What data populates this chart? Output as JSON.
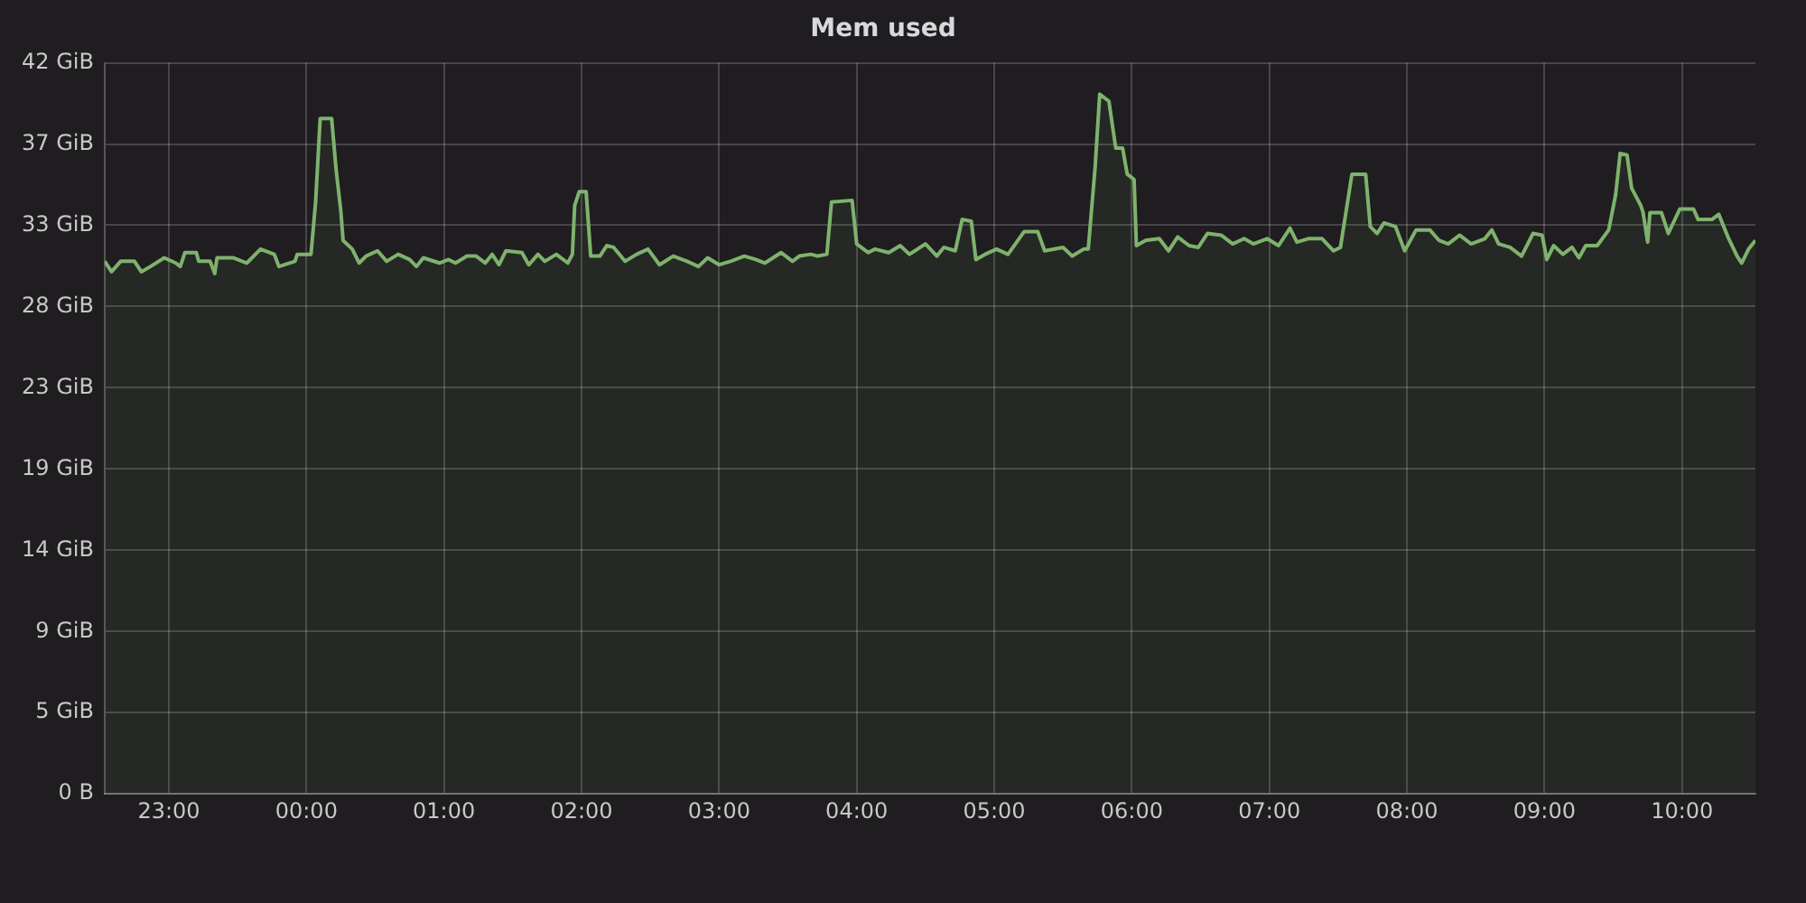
{
  "chart_data": {
    "type": "area",
    "title": "Mem used",
    "color": "#7eb26d",
    "grid": true,
    "x": [
      "--01-01T22:32",
      "--01-01T22:35",
      "--01-01T22:39",
      "--01-01T22:45",
      "--01-01T22:48",
      "--01-01T22:52",
      "--01-01T22:58",
      "--01-01T23:03",
      "--01-01T23:05",
      "--01-01T23:07",
      "--01-01T23:12",
      "--01-01T23:13",
      "--01-01T23:18",
      "--01-01T23:20",
      "--01-01T23:21",
      "--01-01T23:28",
      "--01-01T23:34",
      "--01-01T23:40",
      "--01-01T23:46",
      "--01-01T23:48",
      "--01-01T23:55",
      "--01-01T23:56",
      "--01-02T00:01",
      "--01-02T00:02",
      "--01-02T00:04",
      "--01-02T00:06",
      "--01-02T00:11",
      "--01-02T00:13",
      "--01-02T00:15",
      "--01-02T00:16",
      "--01-02T00:20",
      "--01-02T00:23",
      "--01-02T00:26",
      "--01-02T00:31",
      "--01-02T00:35",
      "--01-02T00:40",
      "--01-02T00:45",
      "--01-02T00:48",
      "--01-02T00:51",
      "--01-02T00:58",
      "--01-02T01:02",
      "--01-02T01:05",
      "--01-02T01:10",
      "--01-02T01:14",
      "--01-02T01:18",
      "--01-02T01:21",
      "--01-02T01:24",
      "--01-02T01:27",
      "--01-02T01:34",
      "--01-02T01:37",
      "--01-02T01:41",
      "--01-02T01:44",
      "--01-02T01:49",
      "--01-02T01:54",
      "--01-02T01:56",
      "--01-02T01:57",
      "--01-02T01:59",
      "--01-02T02:02",
      "--01-02T02:04",
      "--01-02T02:08",
      "--01-02T02:11",
      "--01-02T02:14",
      "--01-02T02:19",
      "--01-02T02:24",
      "--01-02T02:29",
      "--01-02T02:34",
      "--01-02T02:40",
      "--01-02T02:46",
      "--01-02T02:51",
      "--01-02T02:55",
      "--01-02T03:00",
      "--01-02T03:05",
      "--01-02T03:11",
      "--01-02T03:16",
      "--01-02T03:20",
      "--01-02T03:27",
      "--01-02T03:32",
      "--01-02T03:35",
      "--01-02T03:40",
      "--01-02T03:43",
      "--01-02T03:47",
      "--01-02T03:49",
      "--01-02T03:58",
      "--01-02T04:00",
      "--01-02T04:05",
      "--01-02T04:08",
      "--01-02T04:14",
      "--01-02T04:19",
      "--01-02T04:23",
      "--01-02T04:30",
      "--01-02T04:35",
      "--01-02T04:38",
      "--01-02T04:43",
      "--01-02T04:46",
      "--01-02T04:50",
      "--01-02T04:52",
      "--01-02T04:56",
      "--01-02T05:01",
      "--01-02T05:06",
      "--01-02T05:13",
      "--01-02T05:19",
      "--01-02T05:22",
      "--01-02T05:30",
      "--01-02T05:34",
      "--01-02T05:39",
      "--01-02T05:41",
      "--01-02T05:44",
      "--01-02T05:46",
      "--01-02T05:50",
      "--01-02T05:53",
      "--01-02T05:56",
      "--01-02T05:58",
      "--01-02T06:01",
      "--01-02T06:02",
      "--01-02T06:06",
      "--01-02T06:12",
      "--01-02T06:16",
      "--01-02T06:20",
      "--01-02T06:25",
      "--01-02T06:29",
      "--01-02T06:33",
      "--01-02T06:39",
      "--01-02T06:44",
      "--01-02T06:49",
      "--01-02T06:53",
      "--01-02T06:59",
      "--01-02T07:04",
      "--01-02T07:09",
      "--01-02T07:12",
      "--01-02T07:17",
      "--01-02T07:23",
      "--01-02T07:28",
      "--01-02T07:31",
      "--01-02T07:36",
      "--01-02T07:42",
      "--01-02T07:44",
      "--01-02T07:47",
      "--01-02T07:50",
      "--01-02T07:55",
      "--01-02T07:59",
      "--01-02T08:04",
      "--01-02T08:10",
      "--01-02T08:14",
      "--01-02T08:18",
      "--01-02T08:23",
      "--01-02T08:28",
      "--01-02T08:34",
      "--01-02T08:37",
      "--01-02T08:40",
      "--01-02T08:45",
      "--01-02T08:50",
      "--01-02T08:55",
      "--01-02T08:59",
      "--01-02T09:01",
      "--01-02T09:04",
      "--01-02T09:08",
      "--01-02T09:12",
      "--01-02T09:15",
      "--01-02T09:18",
      "--01-02T09:23",
      "--01-02T09:28",
      "--01-02T09:31",
      "--01-02T09:33",
      "--01-02T09:36",
      "--01-02T09:38",
      "--01-02T09:42",
      "--01-02T09:43",
      "--01-02T09:45",
      "--01-02T09:46",
      "--01-02T09:51",
      "--01-02T09:54",
      "--01-02T09:59",
      "--01-02T10:05",
      "--01-02T10:07",
      "--01-02T10:13",
      "--01-02T10:16",
      "--01-02T10:20",
      "--01-02T10:24",
      "--01-02T10:26",
      "--01-02T10:29",
      "--01-02T10:32"
    ],
    "values": [
      30.6,
      30.0,
      30.6,
      30.6,
      30.0,
      30.3,
      30.8,
      30.5,
      30.3,
      31.1,
      31.1,
      30.6,
      30.6,
      29.9,
      30.8,
      30.8,
      30.5,
      31.3,
      31.0,
      30.3,
      30.6,
      31.0,
      31.0,
      31.0,
      34.0,
      38.8,
      38.8,
      35.8,
      33.5,
      31.8,
      31.3,
      30.5,
      30.9,
      31.2,
      30.6,
      31.0,
      30.7,
      30.3,
      30.8,
      30.5,
      30.7,
      30.5,
      30.9,
      30.9,
      30.5,
      31.0,
      30.4,
      31.2,
      31.1,
      30.4,
      31.0,
      30.6,
      31.0,
      30.5,
      31.0,
      33.8,
      34.6,
      34.6,
      30.9,
      30.9,
      31.5,
      31.4,
      30.6,
      31.0,
      31.3,
      30.4,
      30.9,
      30.6,
      30.3,
      30.8,
      30.4,
      30.6,
      30.9,
      30.7,
      30.5,
      31.1,
      30.6,
      30.9,
      31.0,
      30.9,
      31.0,
      34.0,
      34.1,
      31.6,
      31.1,
      31.3,
      31.1,
      31.5,
      31.0,
      31.6,
      30.9,
      31.4,
      31.2,
      33.0,
      32.9,
      30.7,
      31.0,
      31.3,
      31.0,
      32.3,
      32.3,
      31.2,
      31.4,
      30.9,
      31.3,
      31.3,
      36.0,
      40.2,
      39.8,
      37.1,
      37.1,
      35.6,
      35.3,
      31.5,
      31.8,
      31.9,
      31.2,
      32.0,
      31.5,
      31.4,
      32.2,
      32.1,
      31.6,
      31.9,
      31.6,
      31.9,
      31.5,
      32.5,
      31.7,
      31.9,
      31.9,
      31.2,
      31.4,
      35.6,
      35.6,
      32.6,
      32.2,
      32.8,
      32.6,
      31.2,
      32.4,
      32.4,
      31.8,
      31.6,
      32.1,
      31.6,
      31.9,
      32.4,
      31.6,
      31.4,
      30.9,
      32.2,
      32.1,
      30.7,
      31.5,
      31.0,
      31.4,
      30.8,
      31.5,
      31.5,
      32.4,
      34.4,
      36.8,
      36.7,
      34.8,
      33.8,
      33.4,
      31.7,
      33.4,
      33.4,
      32.2,
      33.6,
      33.6,
      33.0,
      33.0,
      33.3,
      32.0,
      30.9,
      30.5,
      31.3,
      31.8
    ],
    "xlim": [
      "--01-01T22:32",
      "--01-02T10:32"
    ],
    "xticks": [
      {
        "value": "--01-01T23:00",
        "label": "23:00"
      },
      {
        "value": "--01-02T00:00",
        "label": "00:00"
      },
      {
        "value": "--01-02T01:00",
        "label": "01:00"
      },
      {
        "value": "--01-02T02:00",
        "label": "02:00"
      },
      {
        "value": "--01-02T03:00",
        "label": "03:00"
      },
      {
        "value": "--01-02T04:00",
        "label": "04:00"
      },
      {
        "value": "--01-02T05:00",
        "label": "05:00"
      },
      {
        "value": "--01-02T06:00",
        "label": "06:00"
      },
      {
        "value": "--01-02T07:00",
        "label": "07:00"
      },
      {
        "value": "--01-02T08:00",
        "label": "08:00"
      },
      {
        "value": "--01-02T09:00",
        "label": "09:00"
      },
      {
        "value": "--01-02T10:00",
        "label": "10:00"
      }
    ],
    "ylim": [
      0,
      42
    ],
    "yticks": [
      {
        "value": 0,
        "label": "0 B"
      },
      {
        "value": 4.67,
        "label": "5 GiB"
      },
      {
        "value": 9.33,
        "label": "9 GiB"
      },
      {
        "value": 14,
        "label": "14 GiB"
      },
      {
        "value": 18.67,
        "label": "19 GiB"
      },
      {
        "value": 23.33,
        "label": "23 GiB"
      },
      {
        "value": 28,
        "label": "28 GiB"
      },
      {
        "value": 32.67,
        "label": "33 GiB"
      },
      {
        "value": 37.33,
        "label": "37 GiB"
      },
      {
        "value": 42,
        "label": "42 GiB"
      }
    ]
  }
}
